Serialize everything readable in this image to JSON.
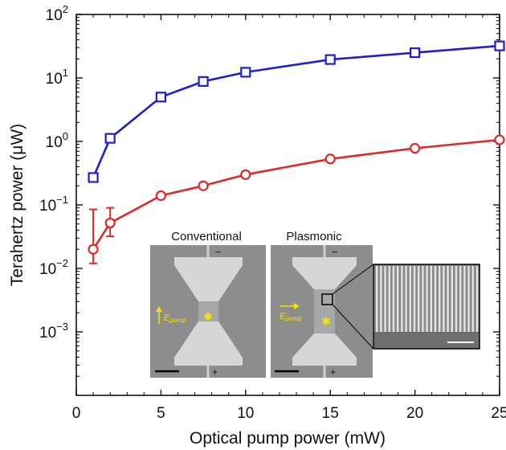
{
  "chart_data": {
    "type": "line",
    "xlabel": "Optical pump power (mW)",
    "ylabel": "Terahertz power (μW)",
    "xlim": [
      0,
      25
    ],
    "ylim": [
      0.0001,
      100
    ],
    "yscale": "log",
    "x_ticks": [
      0,
      5,
      10,
      15,
      20,
      25
    ],
    "y_ticks": [
      {
        "value": 100,
        "base": "10",
        "exp": "2"
      },
      {
        "value": 10,
        "base": "10",
        "exp": "1"
      },
      {
        "value": 1,
        "base": "10",
        "exp": "0"
      },
      {
        "value": 0.1,
        "base": "10",
        "exp": "−1"
      },
      {
        "value": 0.01,
        "base": "10",
        "exp": "−2"
      },
      {
        "value": 0.001,
        "base": "10",
        "exp": "−3"
      }
    ],
    "series": [
      {
        "color": "#1f1fcf",
        "marker": "square",
        "x": [
          1,
          2,
          5,
          7.5,
          10,
          15,
          20,
          25
        ],
        "y": [
          0.27,
          1.12,
          5.0,
          8.8,
          12.3,
          19.5,
          25.0,
          32.0
        ]
      },
      {
        "color": "#e02a2a",
        "marker": "circle",
        "x": [
          1,
          2,
          5,
          7.5,
          10,
          15,
          20,
          25
        ],
        "y": [
          0.02,
          0.052,
          0.14,
          0.2,
          0.3,
          0.53,
          0.78,
          1.06
        ],
        "error_low": [
          0.012,
          0.032,
          null,
          null,
          null,
          null,
          null,
          null
        ],
        "error_high": [
          0.085,
          0.09,
          null,
          null,
          null,
          null,
          null,
          null
        ]
      }
    ],
    "grid": false,
    "legend": "none"
  },
  "inset": {
    "conventional_label": "Conventional",
    "plasmonic_label": "Plasmonic",
    "epump_main": "E",
    "epump_sub": "pump",
    "minus_sign": "−",
    "plus_sign": "+"
  }
}
